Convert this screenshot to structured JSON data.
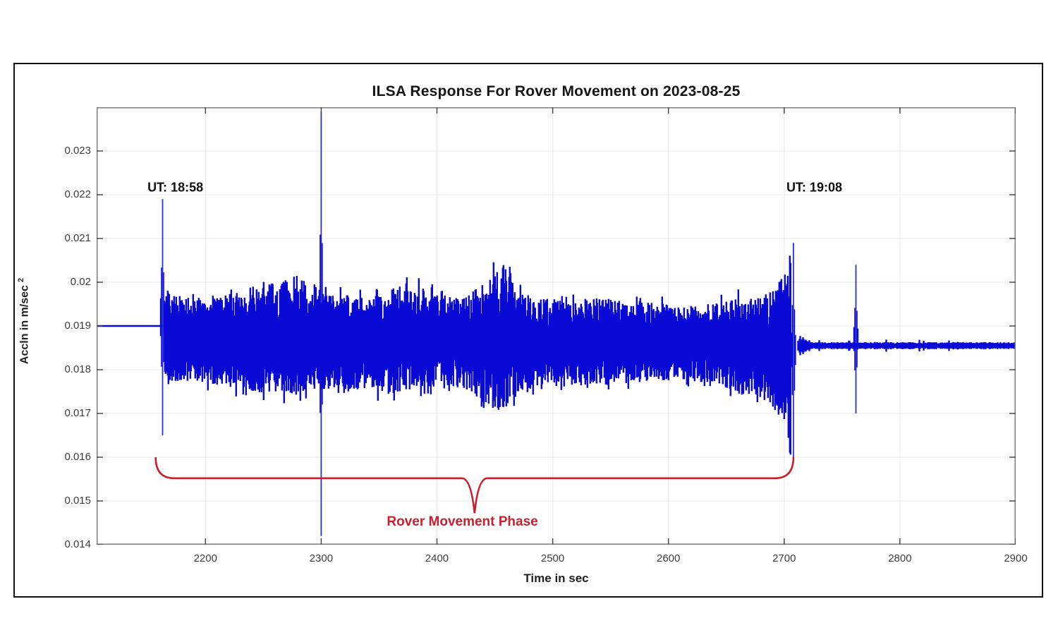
{
  "figure": {
    "title": "ILSA Response For Rover Movement on 2023-08-25",
    "xlabel": "Time in sec",
    "ylabel": "Accln in m/sec",
    "ylabel_exponent": "2",
    "annotations": {
      "start_time_label": "UT: 18:58",
      "end_time_label": "UT: 19:08",
      "phase_label": "Rover Movement Phase"
    },
    "colors": {
      "waveform": "#0a0ad6",
      "annotation_red": "#c8202e",
      "axes_box": "#7d7d7d",
      "grid": "#e9e9ec",
      "tick": "#4a4a4a",
      "text": "#222222",
      "frame_border": "#111111"
    }
  },
  "chart_data": {
    "type": "line",
    "title": "ILSA Response For Rover Movement on 2023-08-25",
    "xlabel": "Time in sec",
    "ylabel": "Accln in m/sec^2",
    "xlim": [
      2106,
      2900
    ],
    "ylim": [
      0.014,
      0.024
    ],
    "grid": true,
    "xticks": {
      "values": [
        2200,
        2300,
        2400,
        2500,
        2600,
        2700,
        2800,
        2900
      ],
      "labels": [
        "2200",
        "2300",
        "2400",
        "2500",
        "2600",
        "2700",
        "2800",
        "2900"
      ]
    },
    "yticks": {
      "values": [
        0.023,
        0.022,
        0.021,
        0.02,
        0.019,
        0.018,
        0.017,
        0.016,
        0.015,
        0.014
      ],
      "labels": [
        "0.023",
        "0.022",
        "0.021",
        "0.02",
        "0.019",
        "0.018",
        "0.017",
        "0.016",
        "0.015",
        "0.014"
      ]
    },
    "series_color": "#0a0ad6",
    "signal": {
      "pre_baseline": {
        "t_start": 2106,
        "t_end": 2163,
        "value": 0.019
      },
      "movement_band": {
        "t_start": 2165,
        "t_end": 2706,
        "envelope": [
          [
            2165,
            0.0197,
            0.0177
          ],
          [
            2185,
            0.0196,
            0.0178
          ],
          [
            2210,
            0.0196,
            0.0177
          ],
          [
            2235,
            0.0197,
            0.0176
          ],
          [
            2255,
            0.0199,
            0.0175
          ],
          [
            2270,
            0.02,
            0.0175
          ],
          [
            2290,
            0.0197,
            0.0176
          ],
          [
            2310,
            0.0197,
            0.0176
          ],
          [
            2335,
            0.0196,
            0.0176
          ],
          [
            2360,
            0.0198,
            0.0175
          ],
          [
            2378,
            0.0199,
            0.0176
          ],
          [
            2400,
            0.0197,
            0.0177
          ],
          [
            2425,
            0.0196,
            0.0176
          ],
          [
            2448,
            0.0201,
            0.0172
          ],
          [
            2458,
            0.0203,
            0.0171
          ],
          [
            2470,
            0.0197,
            0.0175
          ],
          [
            2490,
            0.0196,
            0.0177
          ],
          [
            2515,
            0.0195,
            0.0177
          ],
          [
            2540,
            0.0196,
            0.0177
          ],
          [
            2565,
            0.0195,
            0.0177
          ],
          [
            2590,
            0.0195,
            0.0178
          ],
          [
            2615,
            0.0194,
            0.0178
          ],
          [
            2640,
            0.0195,
            0.0177
          ],
          [
            2660,
            0.0196,
            0.0175
          ],
          [
            2680,
            0.0196,
            0.0174
          ],
          [
            2693,
            0.0198,
            0.0171
          ],
          [
            2701,
            0.0202,
            0.0166
          ],
          [
            2706,
            0.0207,
            0.0161
          ]
        ]
      },
      "spikes": [
        {
          "name": "movement-onset",
          "t": 2163,
          "max": 0.0219,
          "min": 0.0165
        },
        {
          "name": "main-transient",
          "t": 2300,
          "max": 0.0239,
          "min": 0.0142
        },
        {
          "name": "movement-end",
          "t": 2708,
          "max": 0.0209,
          "min": 0.016
        },
        {
          "name": "post-event",
          "t": 2762,
          "max": 0.0204,
          "min": 0.017
        }
      ],
      "post_baseline": {
        "t_start": 2712,
        "t_end": 2900,
        "value": 0.01855
      }
    },
    "annotations": {
      "start_time": {
        "text": "UT: 18:58",
        "t": 2174,
        "v": 0.02216
      },
      "end_time": {
        "text": "UT: 19:08",
        "t": 2726,
        "v": 0.02216
      },
      "phase_label": {
        "text": "Rover Movement Phase",
        "t": 2422,
        "v": 0.01452
      },
      "brace": {
        "t_start": 2157,
        "t_end": 2708,
        "v_ends": 0.016,
        "v_bar": 0.01552,
        "v_tip": 0.01472
      }
    },
    "legend": null
  }
}
